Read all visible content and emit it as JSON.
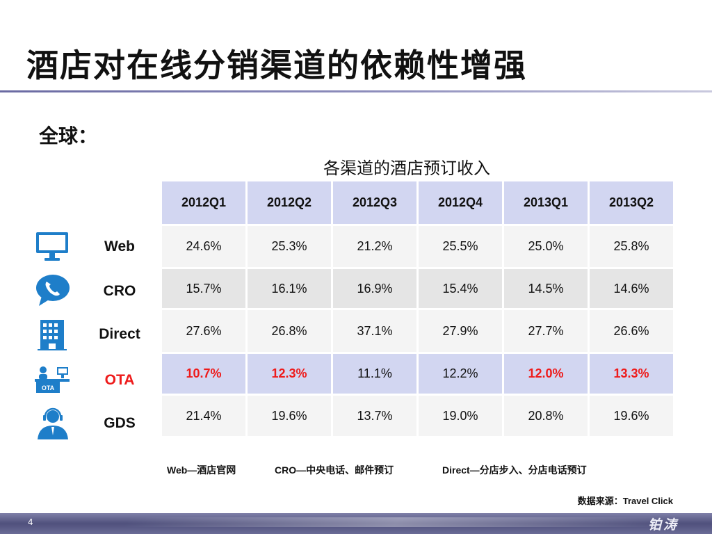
{
  "title": "酒店对在线分销渠道的依赖性增强",
  "section": "全球：",
  "table": {
    "caption": "各渠道的酒店预订收入",
    "columns": [
      "2012Q1",
      "2012Q2",
      "2012Q3",
      "2012Q4",
      "2013Q1",
      "2013Q2"
    ],
    "rows": [
      {
        "channel": "Web",
        "icon": "monitor-icon",
        "values": [
          "24.6%",
          "25.3%",
          "21.2%",
          "25.5%",
          "25.0%",
          "25.8%"
        ]
      },
      {
        "channel": "CRO",
        "icon": "phone-bubble-icon",
        "values": [
          "15.7%",
          "16.1%",
          "16.9%",
          "15.4%",
          "14.5%",
          "14.6%"
        ]
      },
      {
        "channel": "Direct",
        "icon": "hotel-building-icon",
        "values": [
          "27.6%",
          "26.8%",
          "37.1%",
          "27.9%",
          "27.7%",
          "26.6%"
        ]
      },
      {
        "channel": "OTA",
        "icon": "ota-desk-icon",
        "values": [
          "10.7%",
          "12.3%",
          "11.1%",
          "12.2%",
          "12.0%",
          "13.3%"
        ]
      },
      {
        "channel": "GDS",
        "icon": "headset-agent-icon",
        "values": [
          "21.4%",
          "19.6%",
          "13.7%",
          "19.0%",
          "20.8%",
          "19.6%"
        ]
      }
    ]
  },
  "ota_icon_text": "OTA",
  "legend": [
    "Web—酒店官网",
    "CRO—中央电话、邮件预订",
    "Direct—分店步入、分店电话预订"
  ],
  "source": "数据来源：Travel Click",
  "page_number": "4",
  "brand": "铂涛",
  "colors": {
    "accent": "#d2d6f1",
    "highlight": "#ee1b1b",
    "footer": "#4f507c"
  }
}
